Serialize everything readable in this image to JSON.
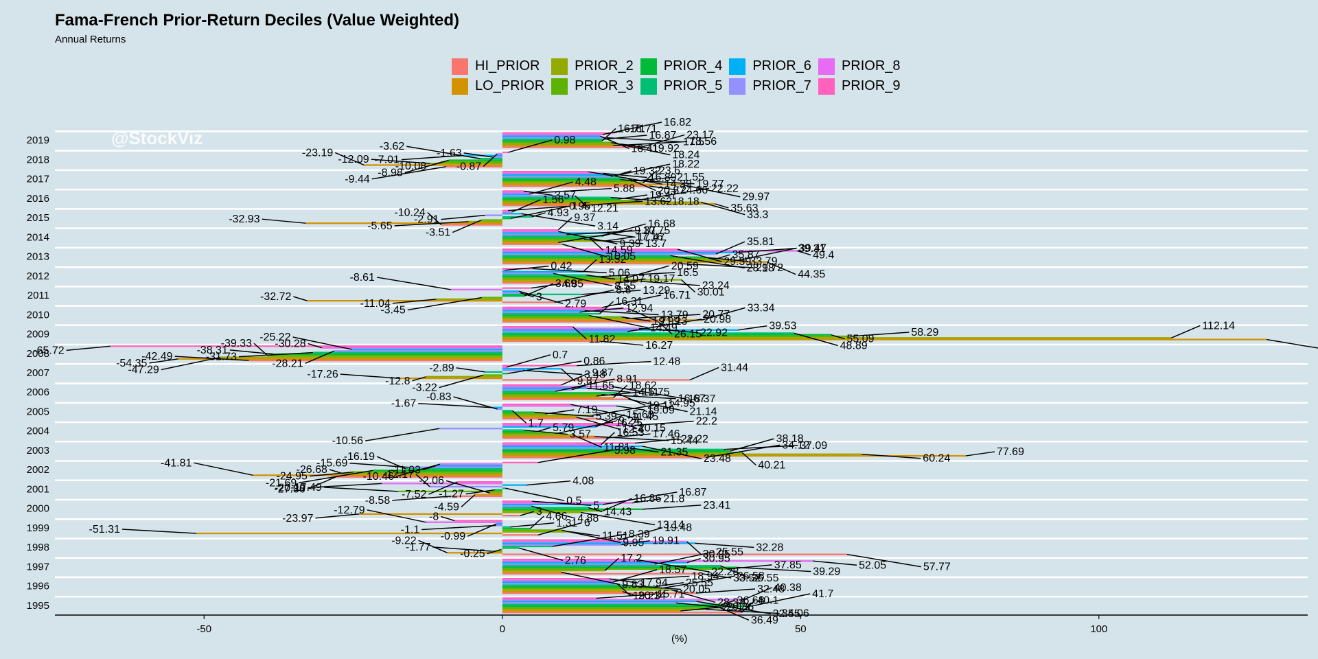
{
  "chart_data": {
    "type": "bar",
    "orientation": "horizontal",
    "title": "Fama-French Prior-Return Deciles (Value Weighted)",
    "subtitle": "Annual Returns",
    "xlabel": "(%)",
    "ylabel": "",
    "xlim": [
      -75,
      135
    ],
    "xticks": [
      -50,
      0,
      50,
      100
    ],
    "grid": true,
    "legend_position": "top",
    "watermark": "@StockViz",
    "categories": [
      "1995",
      "1996",
      "1997",
      "1998",
      "1999",
      "2000",
      "2001",
      "2002",
      "2003",
      "2004",
      "2005",
      "2006",
      "2007",
      "2008",
      "2009",
      "2010",
      "2011",
      "2012",
      "2013",
      "2014",
      "2015",
      "2016",
      "2017",
      "2018",
      "2019"
    ],
    "series": [
      {
        "name": "HI_PRIOR",
        "color": "#F8766D",
        "values": [
          40.1,
          32.48,
          33.52,
          57.77,
          6.0,
          3.0,
          -8.58,
          -27.86,
          34.12,
          17.46,
          16.25,
          21.14,
          31.44,
          -42.49,
          16.27,
          26.15,
          8.8,
          19.17,
          29.72,
          10.05,
          -10.24,
          13.62,
          24.66,
          -9.44,
          23.17
        ]
      },
      {
        "name": "LO_PRIOR",
        "color": "#D39200",
        "values": [
          29.86,
          20.14,
          9.83,
          -9.22,
          -51.31,
          -23.97,
          -4.59,
          -41.81,
          77.69,
          15.44,
          12.4,
          18.62,
          -17.26,
          -54.35,
          128.15,
          33.34,
          -32.72,
          23.24,
          44.35,
          9.37,
          -32.93,
          35.63,
          29.97,
          -23.19,
          18.56
        ]
      },
      {
        "name": "PRIOR_2",
        "color": "#93AA00",
        "values": [
          34.06,
          28.34,
          17.2,
          -1.77,
          11.51,
          13.14,
          -2.06,
          -26.68,
          60.24,
          11.81,
          14.95,
          15.75,
          -12.8,
          -47.29,
          112.14,
          20.77,
          -11.04,
          30.01,
          39.47,
          17.16,
          -5.65,
          33.3,
          23.6,
          -12.09,
          19.92
        ]
      },
      {
        "name": "PRIOR_3",
        "color": "#5EB300",
        "values": [
          36.49,
          26.58,
          37.85,
          -0.25,
          9.95,
          16.86,
          -17.49,
          -24.95,
          40.21,
          9.24,
          7.19,
          16.67,
          -3.22,
          -39.33,
          58.29,
          19.99,
          -3.45,
          20.59,
          35.87,
          13.7,
          -3.51,
          22.22,
          21.55,
          -10.08,
          18.24
        ]
      },
      {
        "name": "PRIOR_4",
        "color": "#00BA38",
        "values": [
          41.7,
          25.55,
          39.29,
          2.76,
          4.66,
          23.41,
          -1.27,
          -21.69,
          38.18,
          5.79,
          5.39,
          19.12,
          0.86,
          -38.31,
          55.09,
          14.49,
          3.69,
          16.5,
          33.79,
          14.59,
          1.4,
          19.47,
          19.77,
          -8.98,
          16.71
        ]
      },
      {
        "name": "PRIOR_5",
        "color": "#00BF74",
        "values": [
          36.68,
          20.05,
          36.55,
          8.39,
          1.31,
          14.43,
          0.5,
          -16.19,
          37.09,
          3.57,
          1.7,
          8.91,
          -2.89,
          -31.73,
          48.89,
          16.31,
          13.29,
          14.07,
          28.18,
          16.68,
          4.93,
          18.18,
          20.87,
          -3.62,
          16.87
        ]
      },
      {
        "name": "PRIOR_7",
        "color": "#9590FF",
        "values": [
          29.13,
          19.23,
          25.55,
          19.91,
          -1.1,
          4.88,
          -12.17,
          -15.69,
          21.35,
          -10.56,
          -0.83,
          11.65,
          3.48,
          -28.21,
          20.98,
          12.94,
          3.0,
          8.55,
          35.81,
          10.75,
          -2.91,
          12.21,
          18.22,
          -1.63,
          17.5
        ]
      },
      {
        "name": "PRIOR_6",
        "color": "#00B0F6",
        "values": [
          32.55,
          18.57,
          30.95,
          32.28,
          -0.99,
          16.87,
          4.08,
          -11.03,
          23.48,
          15.63,
          -1.67,
          14.11,
          9.87,
          -25.22,
          39.53,
          13.79,
          2.79,
          13.52,
          39.31,
          17.47,
          3.14,
          4.48,
          19.32,
          -7.01,
          16.41
        ]
      },
      {
        "name": "PRIOR_8",
        "color": "#E76BF3",
        "values": [
          40.38,
          18.94,
          52.05,
          30.95,
          -12.79,
          21.8,
          -20.19,
          -10.46,
          16.53,
          22.2,
          19.09,
          18.37,
          0.7,
          -30.28,
          22.92,
          21.23,
          -8.61,
          0.42,
          49.4,
          9.39,
          1.56,
          5.88,
          16.89,
          -0.87,
          16.82
        ]
      },
      {
        "name": "PRIOR_9",
        "color": "#FF62BC",
        "values": [
          15.71,
          17.94,
          22.28,
          19.48,
          -8.0,
          5.0,
          -7.52,
          5.98,
          22.22,
          20.15,
          11.45,
          9.87,
          12.48,
          -65.72,
          11.82,
          16.71,
          4.85,
          5.06,
          29.39,
          9.37,
          0.95,
          3.57,
          14.39,
          0.98,
          18.71
        ]
      }
    ]
  }
}
